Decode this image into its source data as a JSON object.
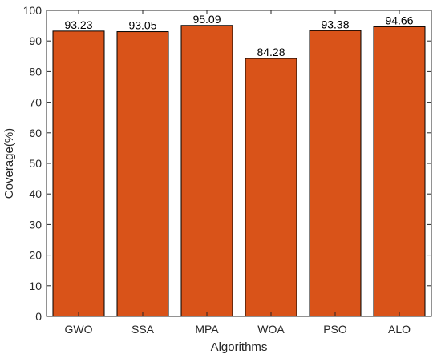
{
  "chart_data": {
    "type": "bar",
    "categories": [
      "GWO",
      "SSA",
      "MPA",
      "WOA",
      "PSO",
      "ALO"
    ],
    "values": [
      93.23,
      93.05,
      95.09,
      84.28,
      93.38,
      94.66
    ],
    "data_labels": [
      "93.23",
      "93.05",
      "95.09",
      "84.28",
      "93.38",
      "94.66"
    ],
    "title": "",
    "xlabel": "Algorithms",
    "ylabel": "Coverage(%)",
    "ylim": [
      0,
      100
    ],
    "yticks": [
      0,
      10,
      20,
      30,
      40,
      50,
      60,
      70,
      80,
      90,
      100
    ],
    "ytick_labels": [
      "0",
      "10",
      "20",
      "30",
      "40",
      "50",
      "60",
      "70",
      "80",
      "90",
      "100"
    ],
    "grid": false,
    "legend": "none",
    "colors": {
      "bar_fill": "#D95319",
      "bar_edge": "#000000",
      "axis": "#262626"
    }
  }
}
